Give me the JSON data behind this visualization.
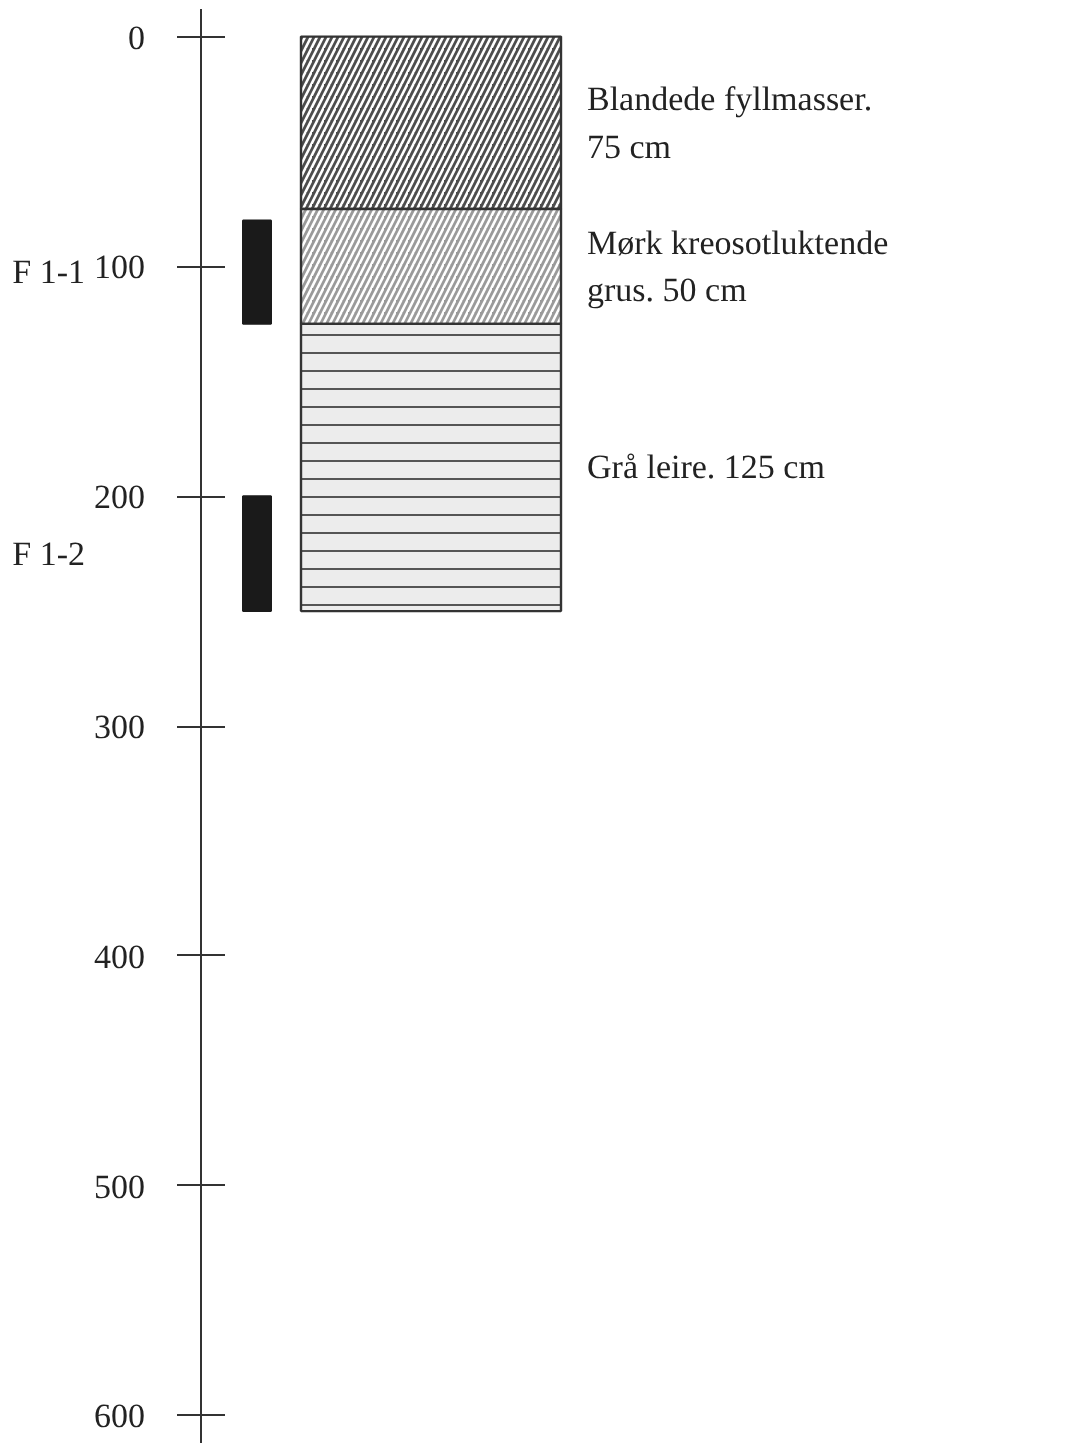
{
  "chart_data": {
    "type": "bar",
    "categories": [
      null
    ],
    "series": [
      {
        "color": "#1a1a1a",
        "values": [
          45
        ],
        "base": [
          80
        ]
      },
      {
        "color": "#1a1a1a",
        "values": [
          50
        ],
        "base": [
          200
        ]
      }
    ],
    "annotations": [
      "F 1-1",
      "F 1-2"
    ],
    "bands": [
      {
        "axis": "y",
        "from": 0,
        "to": 75,
        "label": "Blandede fyllmasser.\n75 cm",
        "color": "#4d4d4d"
      },
      {
        "axis": "y",
        "from": 75,
        "to": 125,
        "label": "Mørk kreosotluktende\ngrus. 50 cm",
        "color": "#9a9a9a"
      },
      {
        "axis": "y",
        "from": 125,
        "to": 250,
        "label": "Grå leire. 125 cm",
        "color": "#ececec"
      }
    ],
    "ylim": [
      612,
      -12
    ],
    "yticks": [
      0,
      100,
      200,
      300,
      400,
      500,
      600
    ],
    "tick_labels": "y",
    "grid": false
  }
}
